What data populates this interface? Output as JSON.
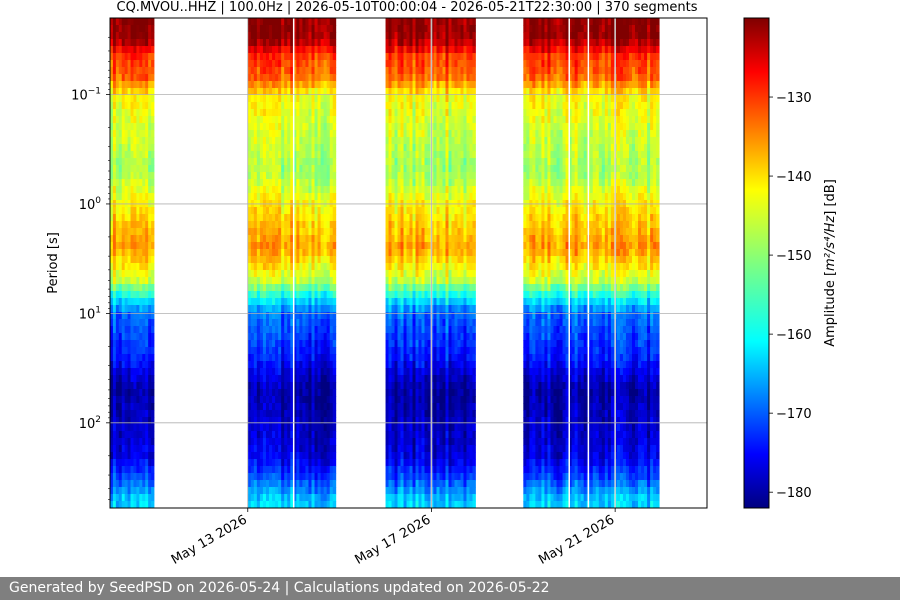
{
  "footer": {
    "text": "Generated by SeedPSD on 2026-05-24 | Calculations updated on 2026-05-22"
  },
  "chart_data": {
    "type": "heatmap",
    "title": "CQ.MVOU..HHZ | 100.0Hz | 2026-05-10T00:00:04 - 2026-05-21T22:30:00 | 370 segments",
    "ylabel": "Period [s]",
    "y_scale": "log",
    "y_inverted": true,
    "ylim": [
      0.02,
      600
    ],
    "y_ticks": [
      {
        "value": 0.1,
        "base": "10",
        "exp": "−1"
      },
      {
        "value": 1,
        "base": "10",
        "exp": "0"
      },
      {
        "value": 10,
        "base": "10",
        "exp": "1"
      },
      {
        "value": 100,
        "base": "10",
        "exp": "2"
      }
    ],
    "x_axis_type": "date",
    "xlim": [
      "2026-05-10",
      "2026-05-23"
    ],
    "x_ticks": [
      "May 13 2026",
      "May 17 2026",
      "May 21 2026"
    ],
    "x_tick_dates": [
      "2026-05-13",
      "2026-05-17",
      "2026-05-21"
    ],
    "grid": true,
    "colormap": "jet",
    "colorbar": {
      "label_pre": "Amplitude [",
      "label_math": "m²/s⁴/Hz",
      "label_post": "] [dB]",
      "range": [
        -182,
        -120
      ],
      "ticks": [
        -130,
        -140,
        -150,
        -160,
        -170,
        -180
      ]
    },
    "data_spans": [
      {
        "start": "2026-05-10 00:00",
        "end": "2026-05-10 23:00"
      },
      {
        "start": "2026-05-13 00:00",
        "end": "2026-05-14 22:00"
      },
      {
        "start": "2026-05-16 00:00",
        "end": "2026-05-17 23:00"
      },
      {
        "start": "2026-05-19 00:00",
        "end": "2026-05-21 23:00"
      }
    ],
    "gap_lines": [
      "2026-05-14 00:00",
      "2026-05-17 00:00",
      "2026-05-20 00:00",
      "2026-05-20 10:00",
      "2026-05-21 00:00"
    ],
    "amplitude_profile_db": [
      {
        "period": 0.02,
        "db": -121
      },
      {
        "period": 0.03,
        "db": -121
      },
      {
        "period": 0.045,
        "db": -131
      },
      {
        "period": 0.07,
        "db": -134
      },
      {
        "period": 0.1,
        "db": -143
      },
      {
        "period": 0.2,
        "db": -146
      },
      {
        "period": 0.5,
        "db": -149
      },
      {
        "period": 1.0,
        "db": -143
      },
      {
        "period": 2.5,
        "db": -137
      },
      {
        "period": 5,
        "db": -147
      },
      {
        "period": 7,
        "db": -158
      },
      {
        "period": 10,
        "db": -168
      },
      {
        "period": 25,
        "db": -173
      },
      {
        "period": 50,
        "db": -180
      },
      {
        "period": 100,
        "db": -178
      },
      {
        "period": 200,
        "db": -176
      },
      {
        "period": 300,
        "db": -171
      },
      {
        "period": 500,
        "db": -162
      },
      {
        "period": 600,
        "db": -162
      }
    ]
  }
}
